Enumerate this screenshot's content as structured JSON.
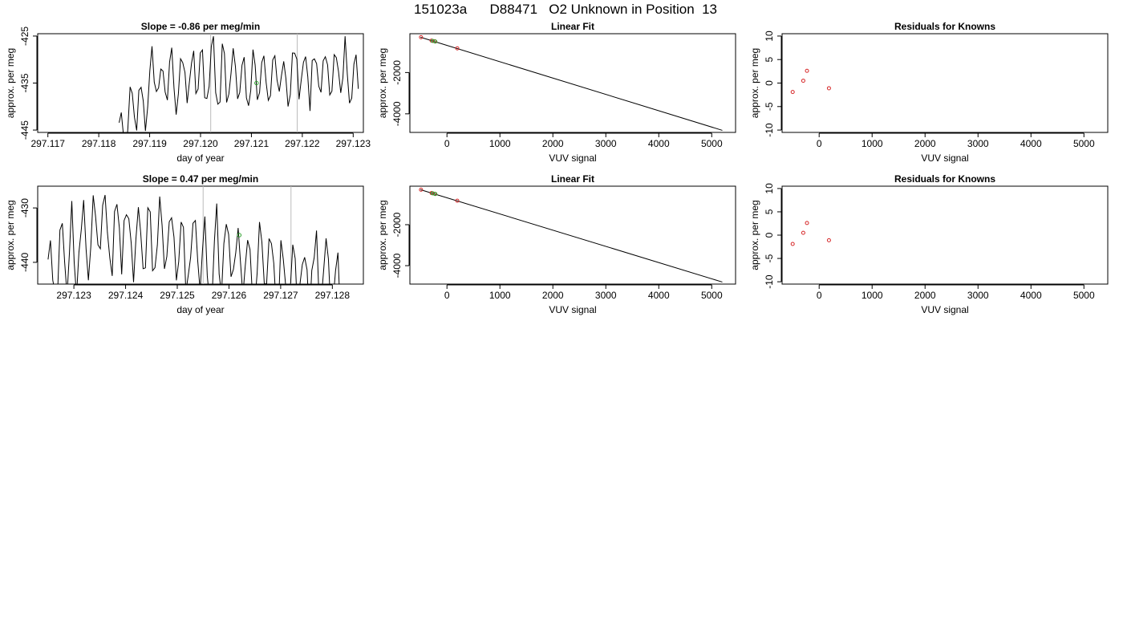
{
  "page_title": "151023a      D88471   O2 Unknown in Position  13",
  "colors": {
    "line": "#000000",
    "known_point": "#d62728",
    "unknown_point": "#2ca02c",
    "axis": "#000000",
    "guide": "#bbbbbb"
  },
  "chart_data": [
    {
      "id": "ts1",
      "type": "line",
      "title": "Slope =  -0.86  per meg/min",
      "xlabel": "day of year",
      "ylabel": "approx. per meg",
      "xlim": [
        297.1168,
        297.1232
      ],
      "ylim": [
        -445.5,
        -424.5
      ],
      "xticks": [
        297.117,
        297.118,
        297.119,
        297.12,
        297.121,
        297.122,
        297.123
      ],
      "xticklabels": [
        "297.117",
        "297.118",
        "297.119",
        "297.120",
        "297.121",
        "297.122",
        "297.123"
      ],
      "yticks": [
        -425,
        -435,
        -445
      ],
      "yticklabels": [
        "-425",
        "-435",
        "-445"
      ],
      "vlines": [
        297.1202,
        297.1219
      ],
      "highlight_point": {
        "x": 297.1211,
        "y": -435
      },
      "series_x_range": [
        297.1184,
        297.1231
      ],
      "series_seed": 7,
      "series_n": 110,
      "series_start": -446,
      "series_mid": -434,
      "series_end": -433,
      "series_amp": 6.5
    },
    {
      "id": "fit1",
      "type": "scatter",
      "title": "Linear Fit",
      "xlabel": "VUV signal",
      "ylabel": "approx. per meg",
      "xlim": [
        -700,
        5450
      ],
      "ylim": [
        -4900,
        -120
      ],
      "xticks": [
        0,
        1000,
        2000,
        3000,
        4000,
        5000
      ],
      "xticklabels": [
        "0",
        "1000",
        "2000",
        "3000",
        "4000",
        "5000"
      ],
      "yticks": [
        -2000,
        -4000
      ],
      "yticklabels": [
        "-2000",
        "-4000"
      ],
      "fit_line": {
        "x": [
          -500,
          5200
        ],
        "y": [
          -290,
          -4800
        ]
      },
      "known_points": [
        {
          "x": -490,
          "y": -290
        },
        {
          "x": -290,
          "y": -455
        },
        {
          "x": -230,
          "y": -490
        },
        {
          "x": 195,
          "y": -830
        }
      ],
      "unknown_points": [
        {
          "x": -270,
          "y": -470
        },
        {
          "x": -220,
          "y": -500
        }
      ]
    },
    {
      "id": "res1",
      "type": "scatter",
      "title": "Residuals for Knowns",
      "xlabel": "VUV signal",
      "ylabel": "approx. per meg",
      "xlim": [
        -700,
        5450
      ],
      "ylim": [
        -10.5,
        10.5
      ],
      "xticks": [
        0,
        1000,
        2000,
        3000,
        4000,
        5000
      ],
      "xticklabels": [
        "0",
        "1000",
        "2000",
        "3000",
        "4000",
        "5000"
      ],
      "yticks": [
        10,
        5,
        0,
        -5,
        -10
      ],
      "yticklabels": [
        "10",
        "5",
        "0",
        "-5",
        "-10"
      ],
      "known_points": [
        {
          "x": -500,
          "y": -1.9
        },
        {
          "x": -300,
          "y": 0.5
        },
        {
          "x": -230,
          "y": 2.6
        },
        {
          "x": 185,
          "y": -1.1
        }
      ]
    },
    {
      "id": "ts2",
      "type": "line",
      "title": "Slope =  0.47  per meg/min",
      "xlabel": "day of year",
      "ylabel": "approx. per meg",
      "xlim": [
        297.1223,
        297.1286
      ],
      "ylim": [
        -444,
        -426
      ],
      "xticks": [
        297.123,
        297.124,
        297.125,
        297.126,
        297.127,
        297.128
      ],
      "xticklabels": [
        "297.123",
        "297.124",
        "297.125",
        "297.126",
        "297.127",
        "297.128"
      ],
      "yticks": [
        -430,
        -440
      ],
      "yticklabels": [
        "-430",
        "-440"
      ],
      "vlines": [
        297.1255,
        297.1272
      ],
      "highlight_point": {
        "x": 297.1262,
        "y": -435
      },
      "series_x_range": [
        297.1225,
        297.1282
      ],
      "series_seed": 19,
      "series_n": 125,
      "series_start": -442,
      "series_mid": -434,
      "series_end": -444,
      "series_amp": 7
    },
    {
      "id": "fit2",
      "type": "scatter",
      "title": "Linear Fit",
      "xlabel": "VUV signal",
      "ylabel": "approx. per meg",
      "xlim": [
        -700,
        5450
      ],
      "ylim": [
        -4900,
        -120
      ],
      "xticks": [
        0,
        1000,
        2000,
        3000,
        4000,
        5000
      ],
      "xticklabels": [
        "0",
        "1000",
        "2000",
        "3000",
        "4000",
        "5000"
      ],
      "yticks": [
        -2000,
        -4000
      ],
      "yticklabels": [
        "-2000",
        "-4000"
      ],
      "fit_line": {
        "x": [
          -500,
          5200
        ],
        "y": [
          -290,
          -4800
        ]
      },
      "known_points": [
        {
          "x": -490,
          "y": -290
        },
        {
          "x": -290,
          "y": -455
        },
        {
          "x": -230,
          "y": -490
        },
        {
          "x": 195,
          "y": -830
        }
      ],
      "unknown_points": [
        {
          "x": -270,
          "y": -470
        },
        {
          "x": -220,
          "y": -500
        }
      ]
    },
    {
      "id": "res2",
      "type": "scatter",
      "title": "Residuals for Knowns",
      "xlabel": "VUV signal",
      "ylabel": "approx. per meg",
      "xlim": [
        -700,
        5450
      ],
      "ylim": [
        -10.5,
        10.5
      ],
      "xticks": [
        0,
        1000,
        2000,
        3000,
        4000,
        5000
      ],
      "xticklabels": [
        "0",
        "1000",
        "2000",
        "3000",
        "4000",
        "5000"
      ],
      "yticks": [
        10,
        5,
        0,
        -5,
        -10
      ],
      "yticklabels": [
        "10",
        "5",
        "0",
        "-5",
        "-10"
      ],
      "known_points": [
        {
          "x": -500,
          "y": -1.9
        },
        {
          "x": -300,
          "y": 0.5
        },
        {
          "x": -230,
          "y": 2.6
        },
        {
          "x": 185,
          "y": -1.1
        }
      ]
    }
  ]
}
